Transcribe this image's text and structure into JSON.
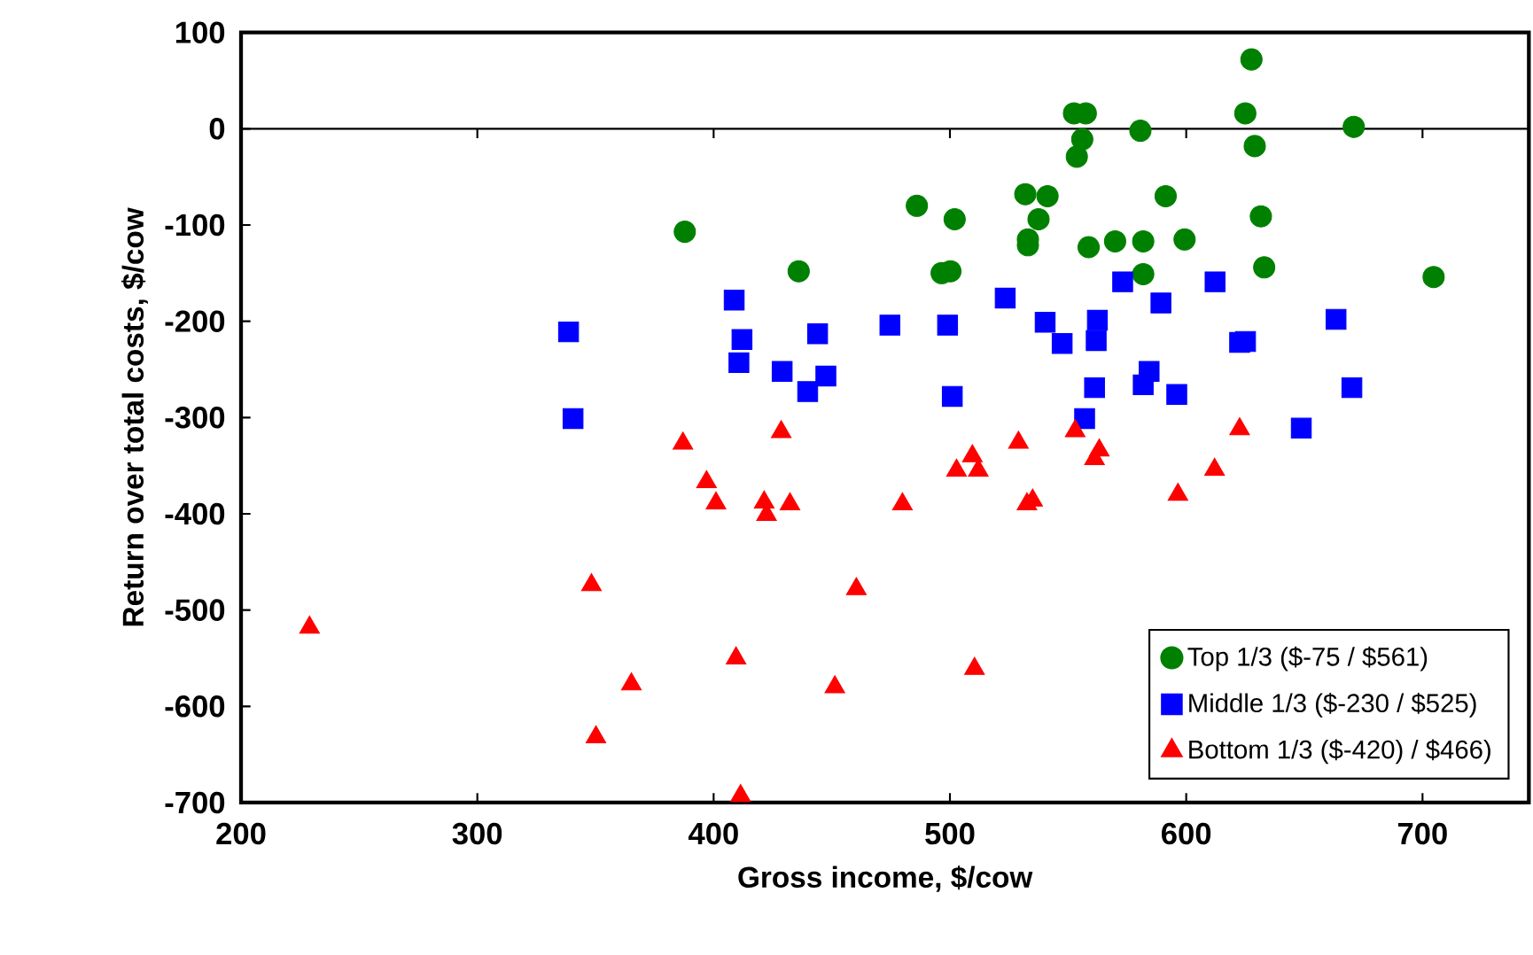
{
  "chart_data": {
    "type": "scatter",
    "xlabel": "Gross income, $/cow",
    "ylabel": "Return over total costs, $/cow",
    "xlim": [
      200,
      745
    ],
    "xticks": [
      200,
      300,
      400,
      500,
      600,
      700
    ],
    "ylim": [
      -700,
      100
    ],
    "yticks": [
      -700,
      -600,
      -500,
      -400,
      -300,
      -200,
      -100,
      0,
      100
    ],
    "grid": false,
    "legend": "bottom right",
    "ref_lines": [
      {
        "axis": "y",
        "value": 0,
        "label": null
      }
    ],
    "series": [
      {
        "name": "Top 1/3 ($-75 / $561)",
        "color": "#008000",
        "marker": "circle",
        "x": [
          387.8,
          436,
          486,
          496.5,
          500.2,
          502,
          531.9,
          533,
          533,
          537.5,
          541.3,
          552.5,
          553.7,
          556,
          557.5,
          558.7,
          569.9,
          580.6,
          581.8,
          581.8,
          591.3,
          599.3,
          625,
          627.6,
          629,
          631.6,
          633,
          670.9,
          704.7
        ],
        "values": [
          -107,
          -148,
          -80,
          -150,
          -148,
          -94,
          -68,
          -115,
          -121,
          -94,
          -70,
          16,
          -29,
          -11,
          16,
          -123,
          -117,
          -2,
          -117,
          -151,
          -70,
          -115,
          16,
          72,
          -18,
          -91,
          -144,
          2,
          -154
        ]
      },
      {
        "name": "Middle 1/3 ($-230 / $525)",
        "color": "#0000ff",
        "marker": "square",
        "x": [
          338.6,
          340.5,
          408.7,
          410.7,
          412,
          429,
          439.8,
          444,
          447.5,
          474.6,
          499,
          501,
          523.4,
          540.3,
          547.5,
          557,
          561.2,
          561.9,
          562.4,
          573.1,
          581.8,
          584.3,
          589.3,
          596,
          612.2,
          622.6,
          625.1,
          648.7,
          663.4,
          670.1
        ],
        "values": [
          -211,
          -301,
          -178,
          -243,
          -219,
          -252,
          -273,
          -213,
          -257,
          -204,
          -204,
          -278,
          -176,
          -201,
          -223,
          -301,
          -269,
          -220,
          -199,
          -159,
          -266,
          -252,
          -181,
          -276,
          -159,
          -222,
          -221,
          -311,
          -198,
          -269
        ]
      },
      {
        "name": "Bottom 1/3 ($-420) / $466)",
        "color": "#ff0000",
        "marker": "triangle",
        "x": [
          229,
          348.3,
          350.2,
          365.2,
          387,
          397,
          401,
          409.5,
          411.4,
          421.4,
          422.4,
          428.6,
          432.3,
          451.3,
          460.4,
          479.9,
          502.8,
          509.5,
          512,
          510.4,
          529,
          532.6,
          535,
          553,
          561.2,
          563.2,
          596.5,
          612,
          622.6
        ],
        "values": [
          -518,
          -474,
          -632,
          -577,
          -327,
          -367,
          -389,
          -550,
          -693,
          -388,
          -401,
          -315,
          -390,
          -580,
          -478,
          -390,
          -355,
          -340,
          -355,
          -561,
          -326,
          -390,
          -386,
          -314,
          -343,
          -334,
          -380,
          -354,
          -312
        ]
      }
    ]
  }
}
